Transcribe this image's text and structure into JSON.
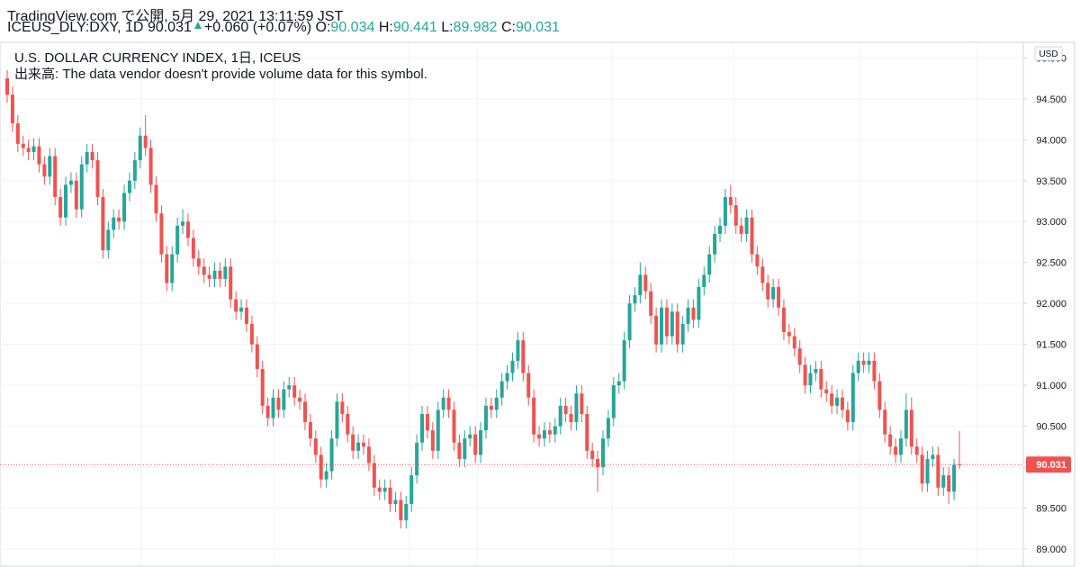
{
  "chart_data": {
    "type": "candlestick",
    "header": {
      "published": "TradingView.com で公開, 5月 29, 2021 13:11:59 JST",
      "symbol": "ICEUS_DLY:DXY, 1D",
      "change": "+0.060 (+0.07%)",
      "o_label": "O:",
      "o": 90.034,
      "h_label": "H:",
      "h": 90.441,
      "l_label": "L:",
      "l": 89.982,
      "c_label": "C:",
      "c": 90.031
    },
    "title": "U.S. DOLLAR CURRENCY INDEX, 1日, ICEUS",
    "volume_note": "出来高: The data vendor doesn't provide volume data for this symbol.",
    "currency": "USD",
    "last_price": 90.031,
    "up_color": "#26a69a",
    "down_color": "#ef5350",
    "ylim": [
      88.78,
      95.18
    ],
    "yticks": [
      {
        "value": 89,
        "label": "89.000"
      },
      {
        "value": 89.5,
        "label": "89.500"
      },
      {
        "value": 90,
        "label": "90.000"
      },
      {
        "value": 90.5,
        "label": "90.500"
      },
      {
        "value": 91,
        "label": "91.000"
      },
      {
        "value": 91.5,
        "label": "91.500"
      },
      {
        "value": 92,
        "label": "92.000"
      },
      {
        "value": 92.5,
        "label": "92.500"
      },
      {
        "value": 93,
        "label": "93.000"
      },
      {
        "value": 93.5,
        "label": "93.500"
      },
      {
        "value": 94,
        "label": "94.000"
      },
      {
        "value": 94.5,
        "label": "94.500"
      },
      {
        "value": 95,
        "label": "95.000"
      }
    ],
    "grid": true,
    "open": [
      94.75,
      94.55,
      94.2,
      93.95,
      93.9,
      93.85,
      93.92,
      93.7,
      93.55,
      93.8,
      93.3,
      93.05,
      93.45,
      93.5,
      93.15,
      93.7,
      93.85,
      93.75,
      93.3,
      92.65,
      92.9,
      93.05,
      93.0,
      93.35,
      93.5,
      93.75,
      94.05,
      93.9,
      93.45,
      93.1,
      92.6,
      92.25,
      92.6,
      92.95,
      93.0,
      92.8,
      92.55,
      92.45,
      92.35,
      92.3,
      92.4,
      92.3,
      92.45,
      92.05,
      91.9,
      91.95,
      91.75,
      91.5,
      91.2,
      90.75,
      90.6,
      90.85,
      90.7,
      90.95,
      91.0,
      90.85,
      90.8,
      90.55,
      90.35,
      90.15,
      89.85,
      89.95,
      90.35,
      90.8,
      90.65,
      90.4,
      90.2,
      90.3,
      90.25,
      90.05,
      89.75,
      89.7,
      89.75,
      89.55,
      89.6,
      89.35,
      89.55,
      89.9,
      90.3,
      90.65,
      90.45,
      90.2,
      90.7,
      90.85,
      90.7,
      90.3,
      90.1,
      90.35,
      90.4,
      90.15,
      90.45,
      90.75,
      90.7,
      90.85,
      91.05,
      91.15,
      91.3,
      91.55,
      91.15,
      90.85,
      90.4,
      90.35,
      90.45,
      90.4,
      90.5,
      90.75,
      90.65,
      90.55,
      90.9,
      90.65,
      90.2,
      90.1,
      90.0,
      90.35,
      90.6,
      91.0,
      91.05,
      91.55,
      92.0,
      92.1,
      92.35,
      92.15,
      91.85,
      91.5,
      91.95,
      91.6,
      91.9,
      91.5,
      91.75,
      91.95,
      91.8,
      92.2,
      92.35,
      92.6,
      92.85,
      92.95,
      93.3,
      93.2,
      92.95,
      92.85,
      93.05,
      92.6,
      92.45,
      92.25,
      92.05,
      92.2,
      91.95,
      91.65,
      91.6,
      91.45,
      91.25,
      91.0,
      91.15,
      91.2,
      90.95,
      90.9,
      90.75,
      90.85,
      90.7,
      90.55,
      91.15,
      91.3,
      91.25,
      91.3,
      91.05,
      90.7,
      90.4,
      90.25,
      90.15,
      90.35,
      90.7,
      90.25,
      90.15,
      89.8,
      90.1,
      90.15,
      89.75,
      89.9,
      89.7,
      90.034
    ],
    "high": [
      94.85,
      94.65,
      94.3,
      94.05,
      94.0,
      94.02,
      94.02,
      93.8,
      93.9,
      93.9,
      93.4,
      93.55,
      93.6,
      93.6,
      93.8,
      93.95,
      93.95,
      93.85,
      93.4,
      93.0,
      93.15,
      93.15,
      93.45,
      93.6,
      93.85,
      94.15,
      94.3,
      94.0,
      93.55,
      93.2,
      92.7,
      92.7,
      93.05,
      93.15,
      93.1,
      92.9,
      92.65,
      92.55,
      92.45,
      92.5,
      92.5,
      92.55,
      92.55,
      92.15,
      92.05,
      92.05,
      91.85,
      91.6,
      91.3,
      90.85,
      90.95,
      90.95,
      91.05,
      91.1,
      91.1,
      90.95,
      90.9,
      90.65,
      90.45,
      90.25,
      90.05,
      90.45,
      90.9,
      90.9,
      90.75,
      90.5,
      90.4,
      90.4,
      90.35,
      90.15,
      89.85,
      89.85,
      89.85,
      89.7,
      89.7,
      89.65,
      90.0,
      90.4,
      90.75,
      90.75,
      90.55,
      90.8,
      90.95,
      90.95,
      90.8,
      90.4,
      90.45,
      90.5,
      90.5,
      90.55,
      90.85,
      90.85,
      90.95,
      91.15,
      91.25,
      91.4,
      91.65,
      91.65,
      91.25,
      90.95,
      90.5,
      90.55,
      90.55,
      90.6,
      90.85,
      90.85,
      90.75,
      91.0,
      91.0,
      90.75,
      90.3,
      90.2,
      90.45,
      90.7,
      91.1,
      91.15,
      91.65,
      92.1,
      92.2,
      92.5,
      92.45,
      92.25,
      91.95,
      92.05,
      92.05,
      92.0,
      92.0,
      91.85,
      92.05,
      92.05,
      92.3,
      92.45,
      92.7,
      92.95,
      93.05,
      93.4,
      93.45,
      93.3,
      93.05,
      93.15,
      93.15,
      92.7,
      92.55,
      92.35,
      92.3,
      92.3,
      92.05,
      91.75,
      91.7,
      91.55,
      91.35,
      91.25,
      91.3,
      91.3,
      91.05,
      91.0,
      90.95,
      90.95,
      90.8,
      91.25,
      91.4,
      91.4,
      91.4,
      91.4,
      91.15,
      90.8,
      90.5,
      90.35,
      90.45,
      90.9,
      90.85,
      90.35,
      90.25,
      90.2,
      90.25,
      90.25,
      90.0,
      90.0,
      90.1,
      90.441
    ],
    "low": [
      94.45,
      94.1,
      93.85,
      93.8,
      93.75,
      93.75,
      93.6,
      93.45,
      93.45,
      93.2,
      92.95,
      92.95,
      93.35,
      93.05,
      93.05,
      93.6,
      93.65,
      93.2,
      92.55,
      92.55,
      92.8,
      92.9,
      92.9,
      93.25,
      93.4,
      93.65,
      93.8,
      93.35,
      93.0,
      92.5,
      92.15,
      92.15,
      92.5,
      92.85,
      92.7,
      92.45,
      92.35,
      92.25,
      92.2,
      92.2,
      92.2,
      92.2,
      91.95,
      91.8,
      91.8,
      91.65,
      91.4,
      91.1,
      90.65,
      90.5,
      90.5,
      90.6,
      90.6,
      90.85,
      90.75,
      90.7,
      90.45,
      90.25,
      90.05,
      89.75,
      89.75,
      89.85,
      90.25,
      90.55,
      90.3,
      90.1,
      90.1,
      90.15,
      89.95,
      89.65,
      89.6,
      89.6,
      89.45,
      89.45,
      89.25,
      89.25,
      89.45,
      89.8,
      90.2,
      90.35,
      90.1,
      90.1,
      90.6,
      90.6,
      90.2,
      90.0,
      90.0,
      90.25,
      90.05,
      90.05,
      90.35,
      90.6,
      90.6,
      90.75,
      90.95,
      91.05,
      91.2,
      91.05,
      90.75,
      90.3,
      90.25,
      90.25,
      90.3,
      90.3,
      90.4,
      90.55,
      90.45,
      90.45,
      90.55,
      90.1,
      90.0,
      89.7,
      89.9,
      90.25,
      90.5,
      90.9,
      90.95,
      91.45,
      91.9,
      92.0,
      92.05,
      91.75,
      91.4,
      91.4,
      91.5,
      91.5,
      91.4,
      91.4,
      91.65,
      91.7,
      91.7,
      92.1,
      92.25,
      92.5,
      92.75,
      92.85,
      93.1,
      92.85,
      92.75,
      92.75,
      92.5,
      92.35,
      92.15,
      91.95,
      91.95,
      91.85,
      91.55,
      91.5,
      91.35,
      91.15,
      90.9,
      90.9,
      91.05,
      90.85,
      90.8,
      90.65,
      90.65,
      90.6,
      90.45,
      90.45,
      91.05,
      91.15,
      91.15,
      90.95,
      90.6,
      90.3,
      90.15,
      90.05,
      90.05,
      90.25,
      90.15,
      90.05,
      89.7,
      89.7,
      90.0,
      89.65,
      89.65,
      89.55,
      89.6,
      89.982
    ],
    "close": [
      94.55,
      94.2,
      93.95,
      93.9,
      93.85,
      93.92,
      93.7,
      93.55,
      93.8,
      93.3,
      93.05,
      93.45,
      93.5,
      93.15,
      93.7,
      93.85,
      93.75,
      93.3,
      92.65,
      92.9,
      93.05,
      93.0,
      93.35,
      93.5,
      93.75,
      94.05,
      93.9,
      93.45,
      93.1,
      92.6,
      92.25,
      92.6,
      92.95,
      93.0,
      92.8,
      92.55,
      92.45,
      92.35,
      92.3,
      92.4,
      92.3,
      92.45,
      92.05,
      91.9,
      91.95,
      91.75,
      91.5,
      91.2,
      90.75,
      90.6,
      90.85,
      90.7,
      90.95,
      91.0,
      90.85,
      90.8,
      90.55,
      90.35,
      90.15,
      89.85,
      89.95,
      90.35,
      90.8,
      90.65,
      90.4,
      90.2,
      90.3,
      90.25,
      90.05,
      89.75,
      89.7,
      89.75,
      89.55,
      89.6,
      89.35,
      89.55,
      89.9,
      90.3,
      90.65,
      90.45,
      90.2,
      90.7,
      90.85,
      90.7,
      90.3,
      90.1,
      90.35,
      90.4,
      90.15,
      90.45,
      90.75,
      90.7,
      90.85,
      91.05,
      91.15,
      91.3,
      91.55,
      91.15,
      90.85,
      90.4,
      90.35,
      90.45,
      90.4,
      90.5,
      90.75,
      90.65,
      90.55,
      90.9,
      90.65,
      90.2,
      90.1,
      90.0,
      90.35,
      90.6,
      91.0,
      91.05,
      91.55,
      92.0,
      92.1,
      92.35,
      92.15,
      91.85,
      91.5,
      91.95,
      91.6,
      91.9,
      91.5,
      91.75,
      91.95,
      91.8,
      92.2,
      92.35,
      92.6,
      92.85,
      92.95,
      93.3,
      93.2,
      92.95,
      92.85,
      93.05,
      92.6,
      92.45,
      92.25,
      92.05,
      92.2,
      91.95,
      91.65,
      91.6,
      91.45,
      91.25,
      91.0,
      91.15,
      91.2,
      90.95,
      90.9,
      90.75,
      90.85,
      90.7,
      90.55,
      91.15,
      91.3,
      91.25,
      91.3,
      91.05,
      90.7,
      90.4,
      90.25,
      90.15,
      90.35,
      90.7,
      90.25,
      90.15,
      89.8,
      90.1,
      90.15,
      89.75,
      89.9,
      89.7,
      90.03,
      90.031
    ]
  }
}
